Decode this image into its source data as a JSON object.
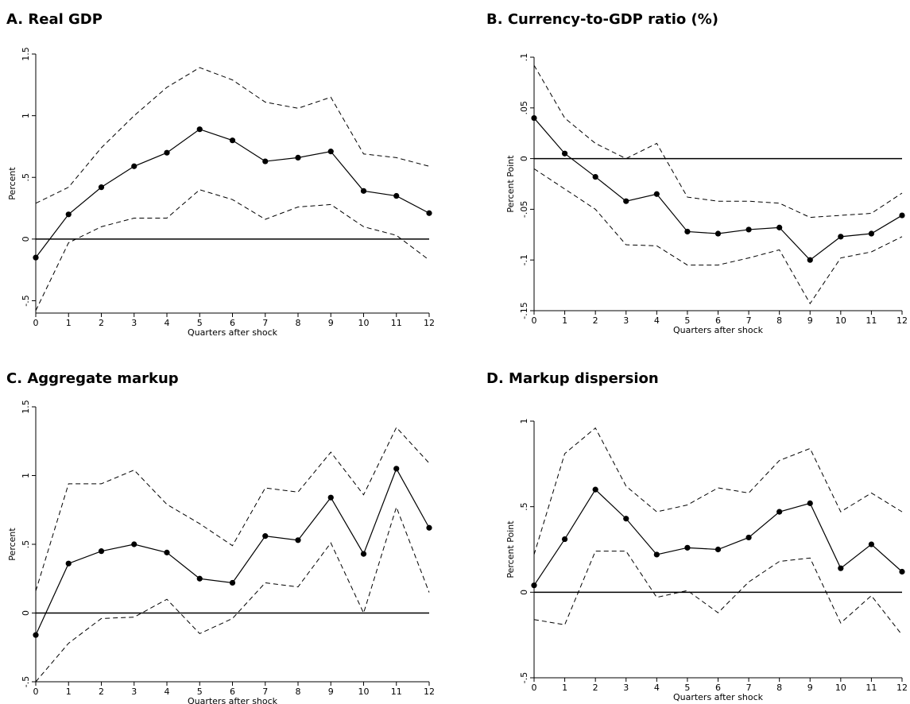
{
  "chart_data": [
    {
      "type": "line",
      "title": "A. Real GDP",
      "ylabel": "Percent",
      "xlabel": "Quarters after shock",
      "x": [
        0,
        1,
        2,
        3,
        4,
        5,
        6,
        7,
        8,
        9,
        10,
        11,
        12
      ],
      "xlim": [
        0,
        12
      ],
      "xticks": [
        0,
        1,
        2,
        3,
        4,
        5,
        6,
        7,
        8,
        9,
        10,
        11,
        12
      ],
      "ylim": [
        -0.6,
        1.5
      ],
      "yticks": [
        {
          "value": -0.5,
          "label": "-.5"
        },
        0,
        {
          "value": 0.5,
          "label": ".5"
        },
        1,
        1.5
      ],
      "zero_line": true,
      "series": [
        {
          "color": "#000000",
          "dash": "solid",
          "marker": true,
          "values": [
            -0.15,
            0.2,
            0.42,
            0.59,
            0.7,
            0.89,
            0.8,
            0.63,
            0.66,
            0.71,
            0.39,
            0.35,
            0.21
          ]
        },
        {
          "color": "#000000",
          "dash": "dashed",
          "marker": false,
          "values": [
            0.29,
            0.42,
            0.74,
            1.0,
            1.23,
            1.39,
            1.29,
            1.11,
            1.06,
            1.15,
            0.69,
            0.66,
            0.59
          ]
        },
        {
          "color": "#000000",
          "dash": "dashed",
          "marker": false,
          "values": [
            -0.58,
            -0.03,
            0.1,
            0.17,
            0.17,
            0.4,
            0.32,
            0.16,
            0.26,
            0.28,
            0.1,
            0.03,
            -0.17
          ]
        }
      ]
    },
    {
      "type": "line",
      "title": "B. Currency-to-GDP ratio (%)",
      "ylabel": "Percent Point",
      "xlabel": "Quarters after shock",
      "x": [
        0,
        1,
        2,
        3,
        4,
        5,
        6,
        7,
        8,
        9,
        10,
        11,
        12
      ],
      "xlim": [
        0,
        12
      ],
      "xticks": [
        0,
        1,
        2,
        3,
        4,
        5,
        6,
        7,
        8,
        9,
        10,
        11,
        12
      ],
      "ylim": [
        -0.15,
        0.1
      ],
      "yticks": [
        {
          "value": -0.15,
          "label": "-.15"
        },
        {
          "value": -0.1,
          "label": "-.1"
        },
        {
          "value": -0.05,
          "label": "-.05"
        },
        0,
        {
          "value": 0.05,
          "label": ".05"
        },
        {
          "value": 0.1,
          "label": ".1"
        }
      ],
      "zero_line": true,
      "series": [
        {
          "color": "#000000",
          "dash": "solid",
          "marker": true,
          "values": [
            0.04,
            0.005,
            -0.018,
            -0.042,
            -0.035,
            -0.072,
            -0.074,
            -0.07,
            -0.068,
            -0.1,
            -0.077,
            -0.074,
            -0.056
          ]
        },
        {
          "color": "#000000",
          "dash": "dashed",
          "marker": false,
          "values": [
            0.092,
            0.04,
            0.015,
            0.0,
            0.015,
            -0.038,
            -0.042,
            -0.042,
            -0.044,
            -0.058,
            -0.056,
            -0.054,
            -0.034
          ]
        },
        {
          "color": "#000000",
          "dash": "dashed",
          "marker": false,
          "values": [
            -0.01,
            -0.03,
            -0.05,
            -0.085,
            -0.086,
            -0.105,
            -0.105,
            -0.098,
            -0.09,
            -0.143,
            -0.098,
            -0.092,
            -0.077
          ]
        }
      ]
    },
    {
      "type": "line",
      "title": "C. Aggregate markup",
      "ylabel": "Percent",
      "xlabel": "Quarters after shock",
      "x": [
        0,
        1,
        2,
        3,
        4,
        5,
        6,
        7,
        8,
        9,
        10,
        11,
        12
      ],
      "xlim": [
        0,
        12
      ],
      "xticks": [
        0,
        1,
        2,
        3,
        4,
        5,
        6,
        7,
        8,
        9,
        10,
        11,
        12
      ],
      "ylim": [
        -0.5,
        1.5
      ],
      "yticks": [
        {
          "value": -0.5,
          "label": "-.5"
        },
        0,
        {
          "value": 0.5,
          "label": ".5"
        },
        1,
        1.5
      ],
      "zero_line": true,
      "series": [
        {
          "color": "#000000",
          "dash": "solid",
          "marker": true,
          "values": [
            -0.16,
            0.36,
            0.45,
            0.5,
            0.44,
            0.25,
            0.22,
            0.56,
            0.53,
            0.84,
            0.43,
            1.05,
            0.62
          ]
        },
        {
          "color": "#000000",
          "dash": "dashed",
          "marker": false,
          "values": [
            0.16,
            0.94,
            0.94,
            1.04,
            0.79,
            0.65,
            0.49,
            0.91,
            0.88,
            1.17,
            0.86,
            1.35,
            1.09
          ]
        },
        {
          "color": "#000000",
          "dash": "dashed",
          "marker": false,
          "values": [
            -0.5,
            -0.22,
            -0.04,
            -0.03,
            0.1,
            -0.15,
            -0.04,
            0.22,
            0.19,
            0.51,
            0.0,
            0.77,
            0.15
          ]
        }
      ]
    },
    {
      "type": "line",
      "title": "D. Markup dispersion",
      "ylabel": "Percent Point",
      "xlabel": "Quarters after shock",
      "x": [
        0,
        1,
        2,
        3,
        4,
        5,
        6,
        7,
        8,
        9,
        10,
        11,
        12
      ],
      "xlim": [
        0,
        12
      ],
      "xticks": [
        0,
        1,
        2,
        3,
        4,
        5,
        6,
        7,
        8,
        9,
        10,
        11,
        12
      ],
      "ylim": [
        -0.5,
        1
      ],
      "yticks": [
        {
          "value": -0.5,
          "label": "-.5"
        },
        0,
        {
          "value": 0.5,
          "label": ".5"
        },
        1
      ],
      "zero_line": true,
      "series": [
        {
          "color": "#000000",
          "dash": "solid",
          "marker": true,
          "values": [
            0.04,
            0.31,
            0.6,
            0.43,
            0.22,
            0.26,
            0.25,
            0.32,
            0.47,
            0.52,
            0.14,
            0.28,
            0.12
          ]
        },
        {
          "color": "#000000",
          "dash": "dashed",
          "marker": false,
          "values": [
            0.22,
            0.81,
            0.96,
            0.62,
            0.47,
            0.51,
            0.61,
            0.58,
            0.77,
            0.84,
            0.47,
            0.58,
            0.47
          ]
        },
        {
          "color": "#000000",
          "dash": "dashed",
          "marker": false,
          "values": [
            -0.16,
            -0.19,
            0.24,
            0.24,
            -0.03,
            0.01,
            -0.12,
            0.06,
            0.18,
            0.2,
            -0.18,
            -0.02,
            -0.25
          ]
        }
      ]
    }
  ]
}
